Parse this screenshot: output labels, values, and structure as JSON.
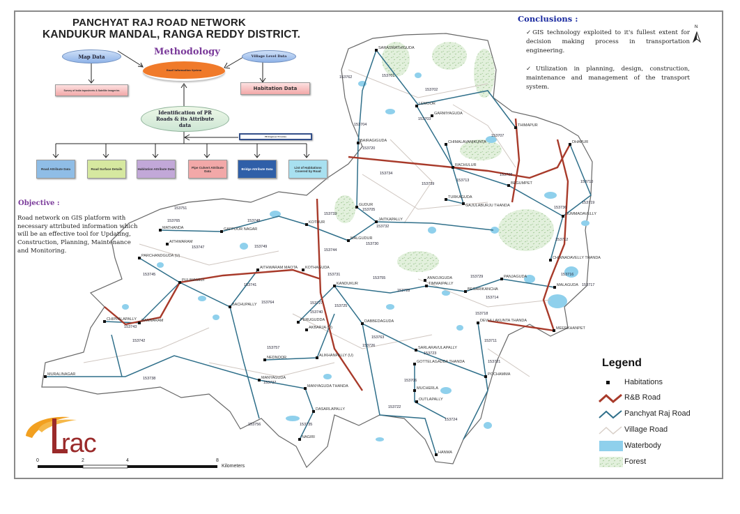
{
  "header": {
    "title_line1": "PANCHYAT RAJ ROAD NETWORK",
    "title_line2": "KANDUKUR MANDAL, RANGA REDDY DISTRICT."
  },
  "methodology": {
    "title": "Methodology",
    "map_data": "Map Data",
    "village_level_data": "Village Level Data",
    "ris": "Road Information System",
    "survey": "Survey of India toposheets & Satellite Imageries",
    "habitation_data": "Habitation Data",
    "identification": "Identification of PR Roads & its Attribute data",
    "pr_engineer": "PR Engineer Provides",
    "outputs": [
      {
        "label": "Road Attribute Data",
        "color": "#8fbde6"
      },
      {
        "label": "Road Surface Details",
        "color": "#d6e8a0"
      },
      {
        "label": "Habitation Attribute Data",
        "color": "#c2a8d8"
      },
      {
        "label": "Pipe Culvert Attribute Data",
        "color": "#f2a8a8"
      },
      {
        "label": "Bridge Attribute Data",
        "color": "#2f5fa8"
      },
      {
        "label": "List of Habitations Covered by Road",
        "color": "#a8e0f0"
      }
    ]
  },
  "objective": {
    "heading": "Objective :",
    "text": "Road network on GIS platform with necessary attributed information which will be an effective tool for Updating, Construction, Planning, Maintenance and Monitoring."
  },
  "conclusions": {
    "heading": "Conclusions :",
    "items": [
      "✓GIS technology exploited to it's fullest extent for decision making process in transportation engineering.",
      "✓Utilization in planning, design, construction, maintenance and management of the transport system."
    ]
  },
  "north_arrow": {
    "label": "N"
  },
  "legend": {
    "title": "Legend",
    "items": [
      {
        "label": "Habitations",
        "icon": "square-marker",
        "color": "#111111"
      },
      {
        "label": "R&B Road",
        "icon": "line",
        "color": "#a83a2a"
      },
      {
        "label": "Panchyat Raj Road",
        "icon": "line",
        "color": "#2f6f8a"
      },
      {
        "label": "Village Road",
        "icon": "line",
        "color": "#d8cfc8"
      },
      {
        "label": "Waterbody",
        "icon": "fill",
        "color": "#8fd0ec"
      },
      {
        "label": "Forest",
        "icon": "pattern",
        "color": "#cfe6c8"
      }
    ]
  },
  "scale_bar": {
    "ticks": [
      "0",
      "2",
      "4",
      "8"
    ],
    "unit": "Kilometers"
  },
  "logo": {
    "text": "trac"
  },
  "map": {
    "colors": {
      "rb_road": "#a83a2a",
      "pr_road": "#2f6f8a",
      "village_road": "#cfc6c0",
      "water": "#8fd0ec",
      "forest": "#d8ecd2",
      "boundary": "#666666"
    },
    "places": [
      "SARASWATHIGUDA",
      "LEMOOR",
      "GARMIYAGUDA",
      "BAIRAGIGUDA",
      "CHIMALAVANIKUNTA",
      "THIMAPUR",
      "DHAPUR",
      "RACHULUR",
      "BEGUMPET",
      "TURKAGUDA",
      "GAJULABURJU THANDA",
      "GUDUR",
      "JAITKAPALLY",
      "GUMMADAVELLY",
      "MALGUDUR",
      "KOTHUR",
      "GAFFOOR NAGAR",
      "MATHANDA",
      "PARCHANDGUDA (U)",
      "AITHWARAM",
      "AITHWARAM MAOTA",
      "KOTHAGUDA",
      "PULIMAMIDI",
      "BACHUPALLY",
      "CHIPPALAPALLY",
      "DANNARAM",
      "KANDUKUR",
      "ANNOJIGUDA",
      "TIMMAIPALLY",
      "BEGARIKANCHA",
      "PANJAGUDA",
      "MALAGUDA",
      "CHINNADAVELLY THANDA",
      "PERUGUDDA",
      "AKBARJA (U)",
      "DABBEDAGUDA",
      "DEVULLAKUNTA THANDA",
      "MEERKHANPET",
      "NEDNOOR",
      "ALIKHANPALLY (U)",
      "SARLARAVULAPALLY",
      "GOTTELAGADDA THANDA",
      "MURALINAGAR",
      "MANYAGUDA",
      "MANYAGUDA THANDA",
      "POCHAMMA",
      "MUCHERLA",
      "OUTLAPALLY",
      "DASARLAPALLY",
      "NAGIRI",
      "HANMA"
    ],
    "road_numbers": [
      "153701",
      "153762",
      "153702",
      "153703",
      "153704",
      "153720",
      "153707",
      "153734",
      "153705",
      "153733",
      "153732",
      "153730",
      "153739",
      "153713",
      "153708",
      "153719",
      "153710",
      "153736",
      "153712",
      "153751",
      "153765",
      "153747",
      "153748",
      "153749",
      "153745",
      "153741",
      "153744",
      "153731",
      "153755",
      "153728",
      "153729",
      "153716",
      "153717",
      "153714",
      "153718",
      "153727",
      "153725",
      "153740",
      "153764",
      "153743",
      "153742",
      "153738",
      "153757",
      "153737",
      "153726",
      "153763",
      "153711",
      "153721",
      "153722",
      "153724",
      "153735",
      "153756",
      "153706",
      "153723"
    ]
  }
}
